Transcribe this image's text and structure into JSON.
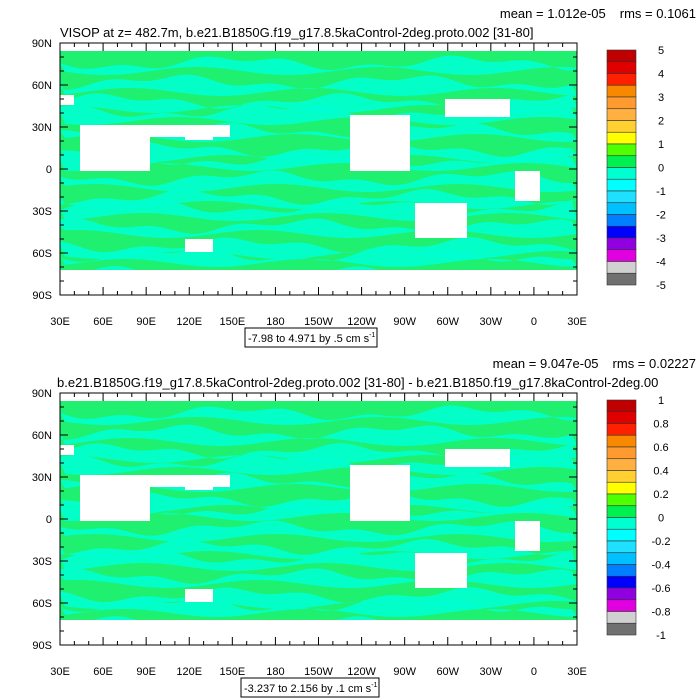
{
  "chart_data": [
    {
      "type": "heatmap",
      "title": "VISOP at z= 482.7m, b.e21.B1850G.f19_g17.8.5kaControl-2deg.proto.002 [31-80]",
      "stats": [
        "mean = 1.012e-05",
        "rms = 0.1061"
      ],
      "x_ticks": [
        "30E",
        "60E",
        "90E",
        "120E",
        "150E",
        "180",
        "150W",
        "120W",
        "90W",
        "60W",
        "30W",
        "0",
        "30E"
      ],
      "y_ticks": [
        "90N",
        "60N",
        "30N",
        "0",
        "30S",
        "60S",
        "90S"
      ],
      "range_label": "-7.98 to 4.971 by .5 cm s",
      "range_sup": "-1",
      "colorbar_labels": [
        "5",
        "4",
        "3",
        "2",
        "1",
        "0",
        "-1",
        "-2",
        "-3",
        "-4",
        "-5"
      ]
    },
    {
      "type": "heatmap",
      "title": "b.e21.B1850G.f19_g17.8.5kaControl-2deg.proto.002 [31-80] - b.e21.B1850.f19_g17.8kaControl-2deg.00",
      "stats": [
        "mean = 9.047e-05",
        "rms = 0.02227"
      ],
      "x_ticks": [
        "30E",
        "60E",
        "90E",
        "120E",
        "150E",
        "180",
        "150W",
        "120W",
        "90W",
        "60W",
        "30W",
        "0",
        "30E"
      ],
      "y_ticks": [
        "90N",
        "60N",
        "30N",
        "0",
        "30S",
        "60S",
        "90S"
      ],
      "range_label": "-3.237 to 2.156 by .1 cm s",
      "range_sup": "-1",
      "colorbar_labels": [
        "1",
        "0.8",
        "0.6",
        "0.4",
        "0.2",
        "0",
        "-0.2",
        "-0.4",
        "-0.6",
        "-0.8",
        "-1"
      ]
    }
  ],
  "colors": {
    "colorbar": [
      "#c00000",
      "#e00000",
      "#ff2000",
      "#f88800",
      "#ff9a30",
      "#ffb040",
      "#ffd030",
      "#ffff00",
      "#50ff00",
      "#00f050",
      "#00ffd0",
      "#00ffff",
      "#20e0ff",
      "#00c0ff",
      "#0080ff",
      "#0000ff",
      "#9000e0",
      "#e000e0",
      "#d0d0d0",
      "#707070"
    ],
    "ocean_base": "#20f070",
    "ocean_band": "#00ffd0",
    "land": "#ffffff"
  }
}
